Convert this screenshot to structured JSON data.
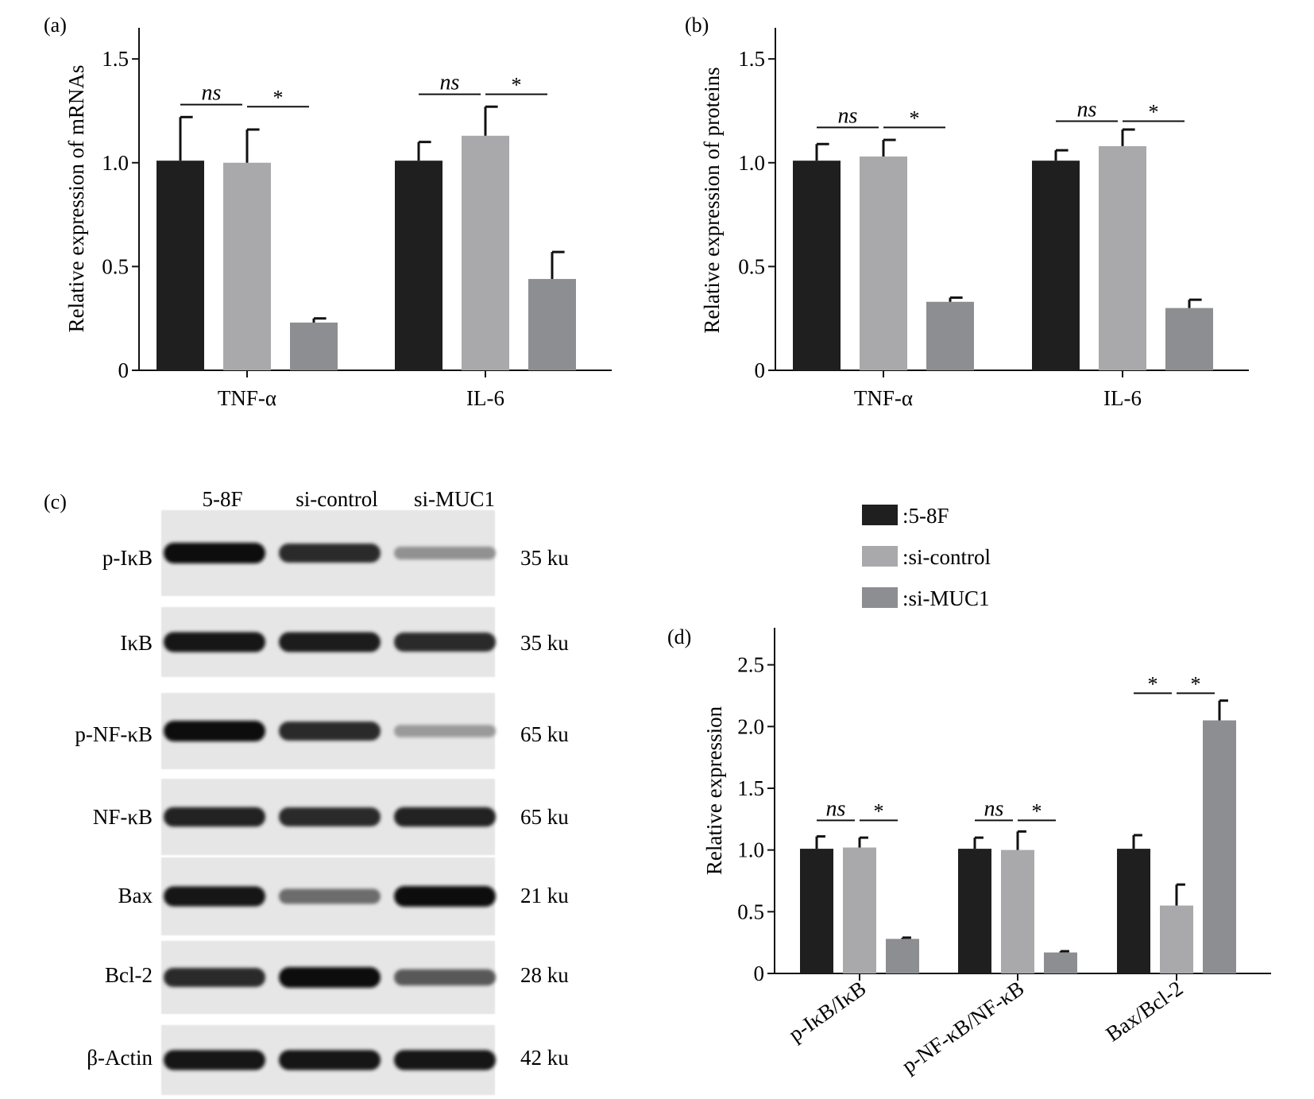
{
  "colors": {
    "series_1": "#1f1f1f",
    "series_2": "#a9a9ab",
    "series_3": "#8d8e92",
    "axis": "#111111"
  },
  "legend": {
    "items": [
      {
        "label": ":5-8F",
        "color": "#1f1f1f"
      },
      {
        "label": ":si-control",
        "color": "#a9a9ab"
      },
      {
        "label": ":si-MUC1",
        "color": "#8d8e92"
      }
    ]
  },
  "chart_data": [
    {
      "panel": "(a)",
      "type": "bar",
      "ylabel": "Relative expression of mRNAs",
      "xlabel": "",
      "ylim": [
        0,
        1.65
      ],
      "yticks": [
        0,
        0.5,
        1.0,
        1.5
      ],
      "ytick_labels": [
        "0",
        "0.5",
        "1.0",
        "1.5"
      ],
      "categories": [
        "TNF-α",
        "IL-6"
      ],
      "series": [
        {
          "name": "5-8F",
          "values": [
            1.01,
            1.01
          ],
          "errors": [
            0.21,
            0.09
          ]
        },
        {
          "name": "si-control",
          "values": [
            1.0,
            1.13
          ],
          "errors": [
            0.16,
            0.14
          ]
        },
        {
          "name": "si-MUC1",
          "values": [
            0.23,
            0.44
          ],
          "errors": [
            0.02,
            0.13
          ]
        }
      ],
      "annotations": [
        {
          "category": 0,
          "from": 0,
          "to": 1,
          "y": 1.28,
          "label": "ns",
          "italic": true
        },
        {
          "category": 0,
          "from": 1,
          "to": 2,
          "y": 1.27,
          "label": "*",
          "italic": false
        },
        {
          "category": 1,
          "from": 0,
          "to": 1,
          "y": 1.33,
          "label": "ns",
          "italic": true
        },
        {
          "category": 1,
          "from": 1,
          "to": 2,
          "y": 1.33,
          "label": "*",
          "italic": false
        }
      ]
    },
    {
      "panel": "(b)",
      "type": "bar",
      "ylabel": "Relative expression of proteins",
      "xlabel": "",
      "ylim": [
        0,
        1.65
      ],
      "yticks": [
        0,
        0.5,
        1.0,
        1.5
      ],
      "ytick_labels": [
        "0",
        "0.5",
        "1.0",
        "1.5"
      ],
      "categories": [
        "TNF-α",
        "IL-6"
      ],
      "series": [
        {
          "name": "5-8F",
          "values": [
            1.01,
            1.01
          ],
          "errors": [
            0.08,
            0.05
          ]
        },
        {
          "name": "si-control",
          "values": [
            1.03,
            1.08
          ],
          "errors": [
            0.08,
            0.08
          ]
        },
        {
          "name": "si-MUC1",
          "values": [
            0.33,
            0.3
          ],
          "errors": [
            0.02,
            0.04
          ]
        }
      ],
      "annotations": [
        {
          "category": 0,
          "from": 0,
          "to": 1,
          "y": 1.17,
          "label": "ns",
          "italic": true
        },
        {
          "category": 0,
          "from": 1,
          "to": 2,
          "y": 1.17,
          "label": "*",
          "italic": false
        },
        {
          "category": 1,
          "from": 0,
          "to": 1,
          "y": 1.2,
          "label": "ns",
          "italic": true
        },
        {
          "category": 1,
          "from": 1,
          "to": 2,
          "y": 1.2,
          "label": "*",
          "italic": false
        }
      ]
    },
    {
      "panel": "(d)",
      "type": "bar",
      "ylabel": "Relative expression",
      "xlabel": "",
      "ylim": [
        0,
        2.8
      ],
      "yticks": [
        0,
        0.5,
        1.0,
        1.5,
        2.0,
        2.5
      ],
      "ytick_labels": [
        "0",
        "0.5",
        "1.0",
        "1.5",
        "2.0",
        "2.5"
      ],
      "categories": [
        "p-IκB/IκB",
        "p-NF-κB/NF-κB",
        "Bax/Bcl-2"
      ],
      "series": [
        {
          "name": "5-8F",
          "values": [
            1.01,
            1.01,
            1.01
          ],
          "errors": [
            0.1,
            0.09,
            0.11
          ]
        },
        {
          "name": "si-control",
          "values": [
            1.02,
            1.0,
            0.55
          ],
          "errors": [
            0.08,
            0.15,
            0.17
          ]
        },
        {
          "name": "si-MUC1",
          "values": [
            0.28,
            0.17,
            2.05
          ],
          "errors": [
            0.01,
            0.01,
            0.16
          ]
        }
      ],
      "annotations": [
        {
          "category": 0,
          "from": 0,
          "to": 1,
          "y": 1.24,
          "label": "ns",
          "italic": true
        },
        {
          "category": 0,
          "from": 1,
          "to": 2,
          "y": 1.24,
          "label": "*",
          "italic": false
        },
        {
          "category": 1,
          "from": 0,
          "to": 1,
          "y": 1.24,
          "label": "ns",
          "italic": true
        },
        {
          "category": 1,
          "from": 1,
          "to": 2,
          "y": 1.24,
          "label": "*",
          "italic": false
        },
        {
          "category": 2,
          "from": 0,
          "to": 1,
          "y": 2.27,
          "label": "*",
          "italic": false
        },
        {
          "category": 2,
          "from": 1,
          "to": 2,
          "y": 2.27,
          "label": "*",
          "italic": false
        }
      ]
    }
  ],
  "western_blot": {
    "panel": "(c)",
    "lanes": [
      "5-8F",
      "si-control",
      "si-MUC1"
    ],
    "rows": [
      {
        "protein": "p-IκB",
        "size": "35 ku",
        "intensity": [
          1.0,
          0.85,
          0.3
        ]
      },
      {
        "protein": "IκB",
        "size": "35 ku",
        "intensity": [
          0.95,
          0.92,
          0.85
        ]
      },
      {
        "protein": "p-NF-κB",
        "size": "65 ku",
        "intensity": [
          1.0,
          0.85,
          0.25
        ]
      },
      {
        "protein": "NF-κB",
        "size": "65 ku",
        "intensity": [
          0.9,
          0.85,
          0.9
        ]
      },
      {
        "protein": "Bax",
        "size": "21 ku",
        "intensity": [
          0.95,
          0.5,
          1.0
        ]
      },
      {
        "protein": "Bcl-2",
        "size": "28 ku",
        "intensity": [
          0.85,
          1.0,
          0.6
        ]
      },
      {
        "protein": "β-Actin",
        "size": "42 ku",
        "intensity": [
          0.95,
          0.95,
          0.95
        ]
      }
    ]
  }
}
